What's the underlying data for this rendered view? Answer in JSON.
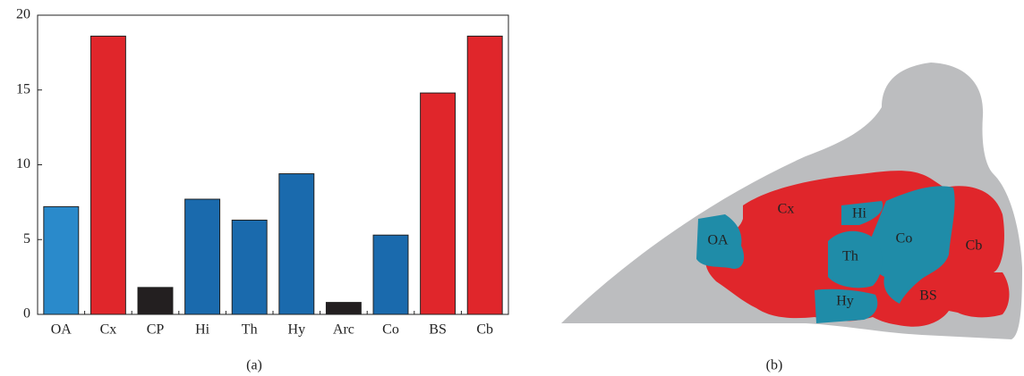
{
  "chart_data": {
    "type": "bar",
    "categories": [
      "OA",
      "Cx",
      "CP",
      "Hi",
      "Th",
      "Hy",
      "Arc",
      "Co",
      "BS",
      "Cb"
    ],
    "values": [
      7.2,
      18.6,
      1.8,
      7.7,
      6.3,
      9.4,
      0.8,
      5.3,
      14.8,
      18.6
    ],
    "colors": [
      "#2a8acb",
      "#e0262b",
      "#231f20",
      "#1a6aad",
      "#1a6aad",
      "#1a6aad",
      "#231f20",
      "#1a6aad",
      "#e0262b",
      "#e0262b"
    ],
    "ylim": [
      0,
      20
    ],
    "yticks": [
      0,
      5,
      10,
      15,
      20
    ],
    "grid": false,
    "caption": "(a)"
  },
  "diagram": {
    "caption": "(b)",
    "regions": [
      "OA",
      "Cx",
      "Hi",
      "Th",
      "Co",
      "Cb",
      "Hy",
      "BS"
    ]
  }
}
